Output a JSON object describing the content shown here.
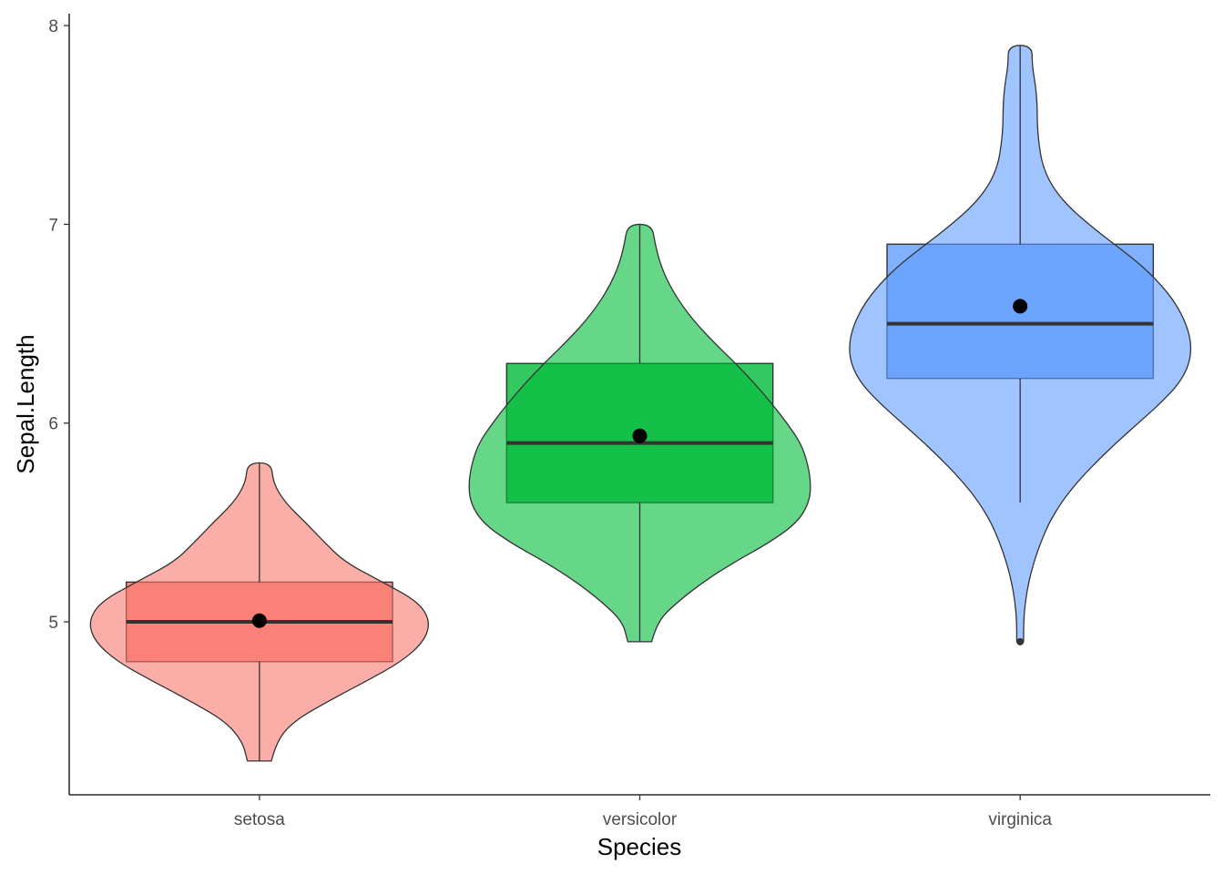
{
  "chart_data": {
    "type": "violin-box",
    "title": "",
    "xlabel": "Species",
    "ylabel": "Sepal.Length",
    "categories": [
      "setosa",
      "versicolor",
      "virginica"
    ],
    "ylim": [
      4.13,
      8.06
    ],
    "yticks": [
      5,
      6,
      7,
      8
    ],
    "grid": false,
    "legend": "none",
    "series": [
      {
        "category": "setosa",
        "color": "#F8766D",
        "min": 4.3,
        "q1": 4.8,
        "median": 5.0,
        "q3": 5.2,
        "max": 5.8,
        "mean": 5.006,
        "outliers": [],
        "density": [
          [
            4.3,
            0.07
          ],
          [
            4.4,
            0.1
          ],
          [
            4.5,
            0.2
          ],
          [
            4.6,
            0.4
          ],
          [
            4.7,
            0.62
          ],
          [
            4.8,
            0.83
          ],
          [
            4.9,
            0.96
          ],
          [
            5.0,
            1.0
          ],
          [
            5.1,
            0.93
          ],
          [
            5.2,
            0.72
          ],
          [
            5.3,
            0.5
          ],
          [
            5.4,
            0.38
          ],
          [
            5.5,
            0.27
          ],
          [
            5.6,
            0.15
          ],
          [
            5.7,
            0.08
          ],
          [
            5.8,
            0.07
          ]
        ]
      },
      {
        "category": "versicolor",
        "color": "#00BA38",
        "min": 4.9,
        "q1": 5.6,
        "median": 5.9,
        "q3": 6.3,
        "max": 7.0,
        "mean": 5.936,
        "outliers": [],
        "density": [
          [
            4.9,
            0.07
          ],
          [
            5.0,
            0.1
          ],
          [
            5.1,
            0.22
          ],
          [
            5.2,
            0.37
          ],
          [
            5.3,
            0.55
          ],
          [
            5.4,
            0.76
          ],
          [
            5.5,
            0.92
          ],
          [
            5.6,
            0.99
          ],
          [
            5.7,
            1.0
          ],
          [
            5.8,
            0.98
          ],
          [
            5.9,
            0.94
          ],
          [
            6.0,
            0.86
          ],
          [
            6.1,
            0.77
          ],
          [
            6.2,
            0.67
          ],
          [
            6.3,
            0.56
          ],
          [
            6.4,
            0.44
          ],
          [
            6.5,
            0.33
          ],
          [
            6.6,
            0.24
          ],
          [
            6.7,
            0.17
          ],
          [
            6.8,
            0.12
          ],
          [
            6.9,
            0.09
          ],
          [
            7.0,
            0.07
          ]
        ]
      },
      {
        "category": "virginica",
        "color": "#619CFF",
        "min": 5.6,
        "q1": 6.225,
        "median": 6.5,
        "q3": 6.9,
        "max": 7.9,
        "mean": 6.588,
        "outliers": [
          4.9
        ],
        "density": [
          [
            4.9,
            0.02
          ],
          [
            5.0,
            0.02
          ],
          [
            5.1,
            0.03
          ],
          [
            5.2,
            0.05
          ],
          [
            5.3,
            0.08
          ],
          [
            5.4,
            0.12
          ],
          [
            5.5,
            0.17
          ],
          [
            5.6,
            0.24
          ],
          [
            5.7,
            0.33
          ],
          [
            5.8,
            0.44
          ],
          [
            5.9,
            0.56
          ],
          [
            6.0,
            0.69
          ],
          [
            6.1,
            0.82
          ],
          [
            6.2,
            0.93
          ],
          [
            6.3,
            0.99
          ],
          [
            6.4,
            1.0
          ],
          [
            6.5,
            0.97
          ],
          [
            6.6,
            0.91
          ],
          [
            6.7,
            0.82
          ],
          [
            6.8,
            0.7
          ],
          [
            6.9,
            0.55
          ],
          [
            7.0,
            0.4
          ],
          [
            7.1,
            0.27
          ],
          [
            7.2,
            0.18
          ],
          [
            7.3,
            0.13
          ],
          [
            7.4,
            0.11
          ],
          [
            7.5,
            0.1
          ],
          [
            7.6,
            0.1
          ],
          [
            7.7,
            0.09
          ],
          [
            7.8,
            0.07
          ],
          [
            7.9,
            0.07
          ]
        ]
      }
    ]
  }
}
